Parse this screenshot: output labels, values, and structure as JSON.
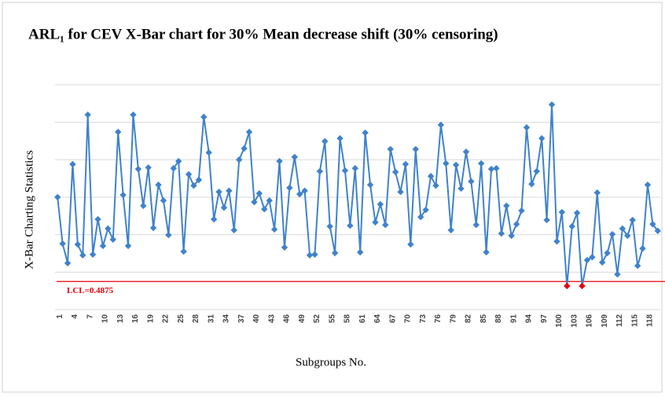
{
  "chart_data": {
    "type": "line",
    "title": "ARL₁ for CEV X-Bar chart for 30% Mean decrease shift (30% censoring)",
    "y_label": "X-Bar Charting Statistics",
    "x_label": "Subgroups No.",
    "categories": [
      "1",
      null,
      null,
      "4",
      null,
      null,
      "7",
      null,
      null,
      "10",
      null,
      null,
      "13",
      null,
      null,
      "16",
      null,
      null,
      "19",
      null,
      null,
      "22",
      null,
      null,
      "25",
      null,
      null,
      "28",
      null,
      null,
      "31",
      null,
      null,
      "34",
      null,
      null,
      "37",
      null,
      null,
      "40",
      null,
      null,
      "43",
      null,
      null,
      "46",
      null,
      null,
      "49",
      null,
      null,
      "52",
      null,
      null,
      "55",
      null,
      null,
      "58",
      null,
      null,
      "61",
      null,
      null,
      "64",
      null,
      null,
      "67",
      null,
      null,
      "70",
      null,
      null,
      "73",
      null,
      null,
      "76",
      null,
      null,
      "79",
      null,
      null,
      "82",
      null,
      null,
      "85",
      null,
      null,
      "88",
      null,
      null,
      "91",
      null,
      null,
      "94",
      null,
      null,
      "97",
      null,
      null,
      "100",
      null,
      null,
      "103",
      null,
      null,
      "106",
      null,
      null,
      "109",
      null,
      null,
      "112",
      null,
      null,
      "115",
      null,
      null,
      "118",
      null,
      null
    ],
    "series": [
      {
        "name": "X-Bar",
        "color": "#3f82cc",
        "values": [
          0.51,
          0.4976,
          0.4924,
          0.5188,
          0.4974,
          0.4945,
          0.532,
          0.4947,
          0.5041,
          0.497,
          0.5016,
          0.4987,
          0.5274,
          0.5106,
          0.497,
          0.532,
          0.5175,
          0.5077,
          0.5179,
          0.5018,
          0.5133,
          0.5091,
          0.4999,
          0.5177,
          0.5196,
          0.4955,
          0.5161,
          0.5131,
          0.5146,
          0.5314,
          0.5219,
          0.5041,
          0.5114,
          0.5072,
          0.5117,
          0.5012,
          0.52,
          0.523,
          0.5274,
          0.5087,
          0.511,
          0.5068,
          0.5091,
          0.5014,
          0.5196,
          0.4966,
          0.5125,
          0.5207,
          0.5108,
          0.5117,
          0.4945,
          0.4947,
          0.5169,
          0.5249,
          0.5022,
          0.4951,
          0.5257,
          0.5171,
          0.5024,
          0.5177,
          0.4953,
          0.5272,
          0.5133,
          0.5033,
          0.5081,
          0.5026,
          0.5228,
          0.5167,
          0.5114,
          0.5188,
          0.4974,
          0.5228,
          0.5047,
          0.5066,
          0.5156,
          0.5131,
          0.5293,
          0.519,
          0.5012,
          0.5186,
          0.5123,
          0.5221,
          0.5142,
          0.5026,
          0.519,
          0.4953,
          0.5175,
          0.5177,
          0.5003,
          0.5077,
          0.4997,
          0.5028,
          0.5064,
          0.5286,
          0.5135,
          0.5169,
          0.5257,
          0.5039,
          0.5347,
          0.4982,
          0.506,
          0.4863,
          0.5022,
          0.5058,
          0.4863,
          0.4932,
          0.494,
          0.5112,
          0.4926,
          0.4951,
          0.5001,
          0.4894,
          0.5016,
          0.4997,
          0.5039,
          0.4917,
          0.4963,
          0.5133,
          0.5028,
          0.501
        ]
      }
    ],
    "lcl": 0.4875,
    "lcl_label": "LCL=0.4875",
    "lcl_color": "#e8000b",
    "below_color": "#e8000b",
    "ylim": [
      0.48,
      0.5427
    ],
    "yticks": [
      0.49,
      0.5,
      0.51,
      0.52,
      0.53,
      0.54
    ],
    "grid": true
  }
}
